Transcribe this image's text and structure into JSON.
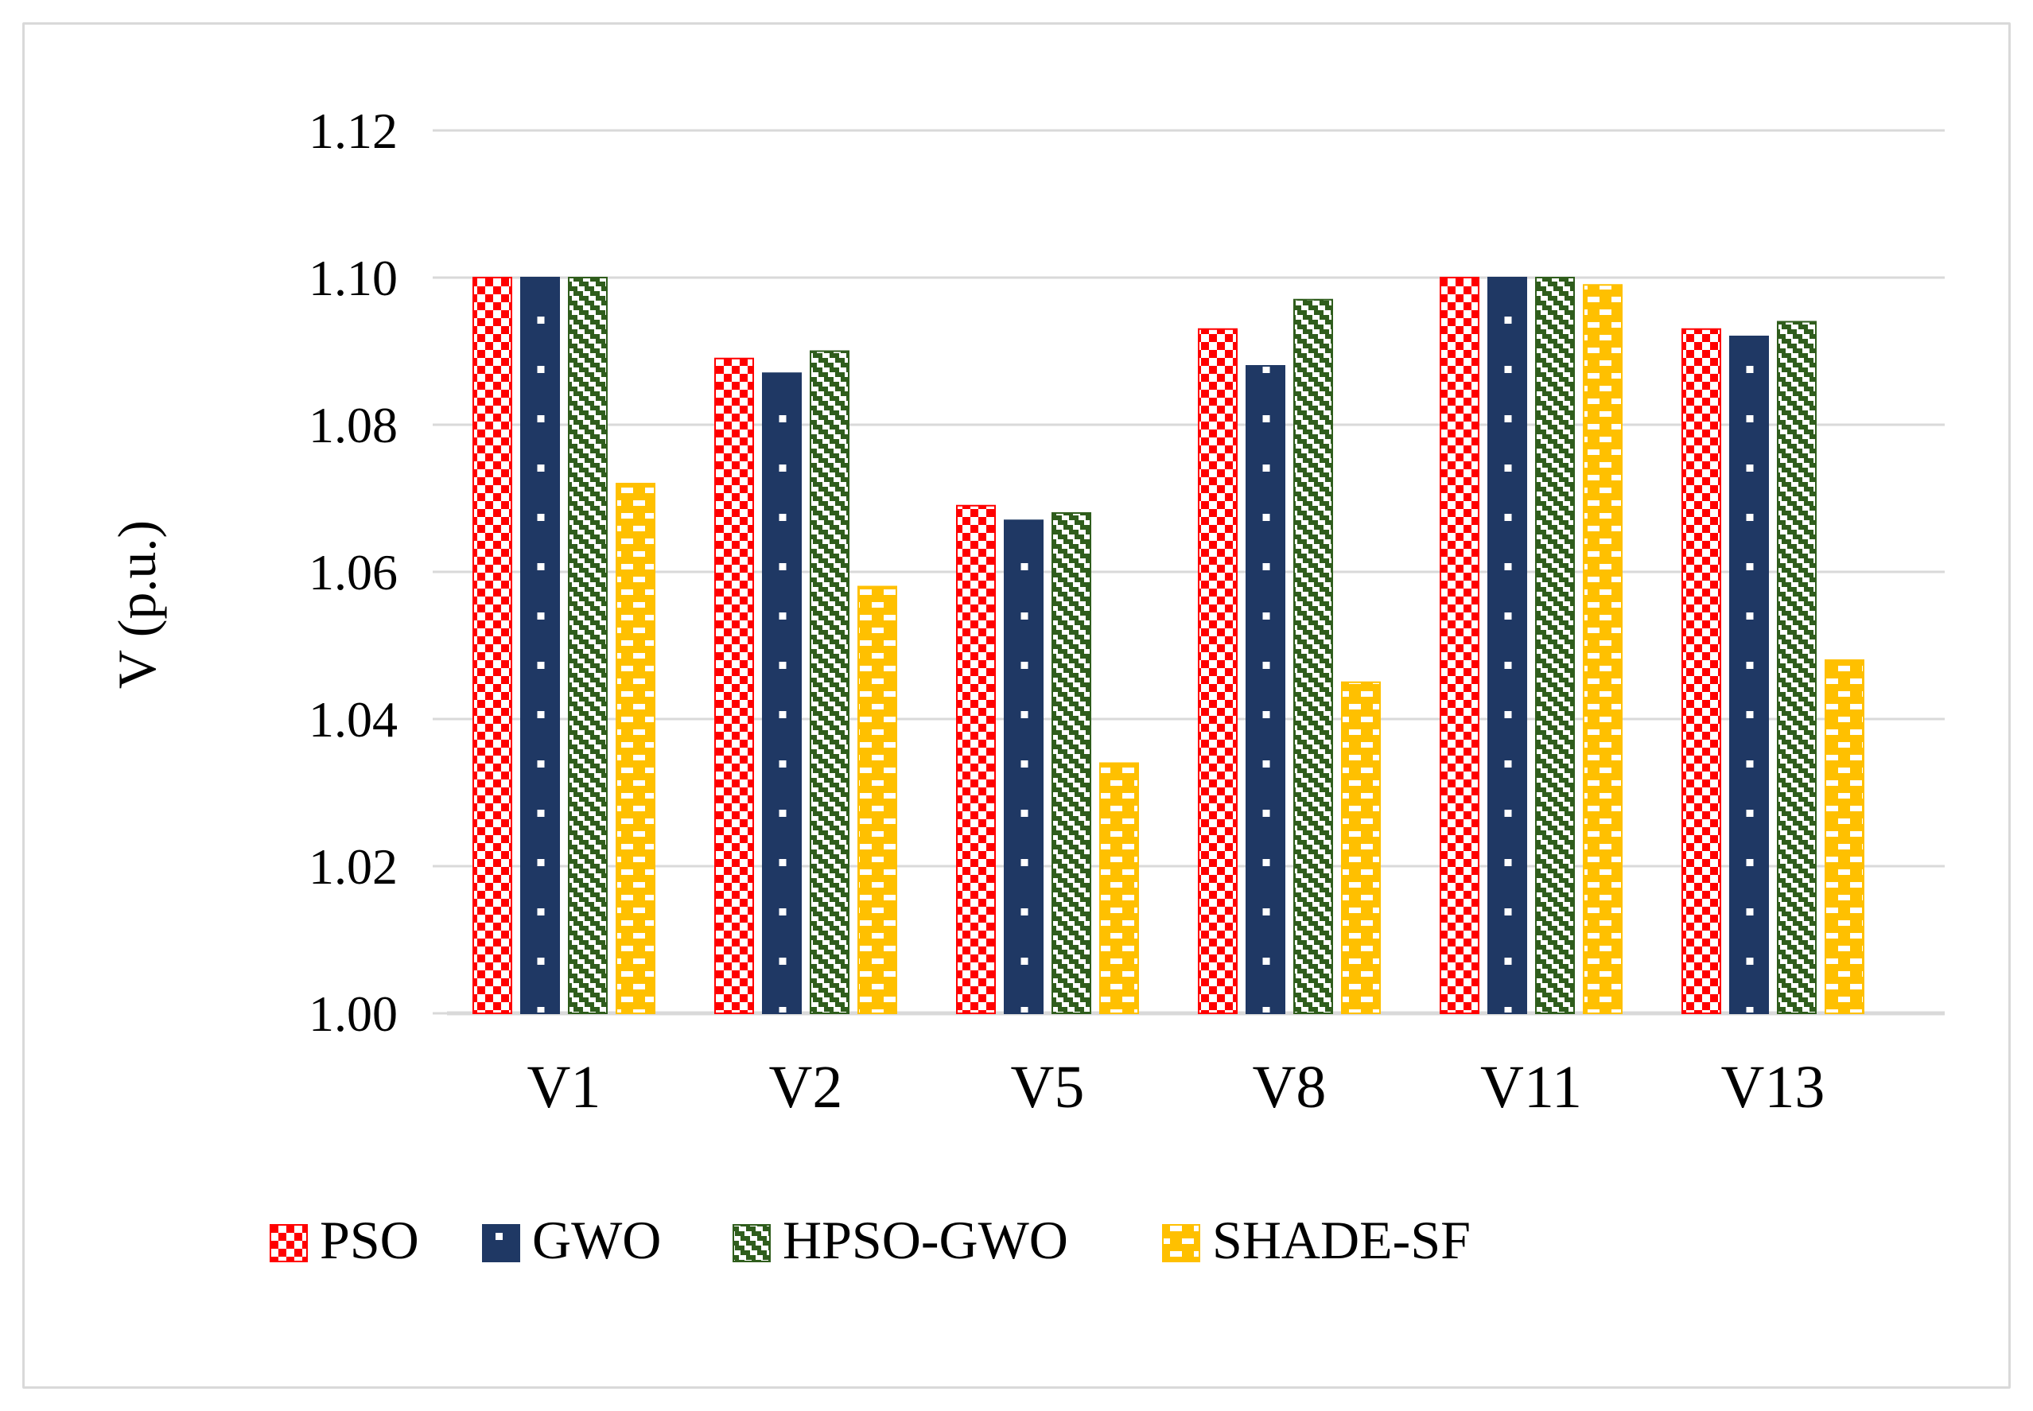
{
  "figure": {
    "border_color": "#d9d9d9",
    "background": "#ffffff",
    "text_color": "#000000"
  },
  "chart_data": {
    "type": "bar",
    "title": "",
    "xlabel": "",
    "ylabel": "V (p.u.)",
    "ylim": [
      1.0,
      1.12
    ],
    "ytick_step": 0.02,
    "yticks": [
      1.0,
      1.02,
      1.04,
      1.06,
      1.08,
      1.1,
      1.12
    ],
    "ytick_labels": [
      "1.00",
      "1.02",
      "1.04",
      "1.06",
      "1.08",
      "1.10",
      "1.12"
    ],
    "grid": true,
    "gridline_color": "#d9d9d9",
    "axis_line_color": "#cccccc",
    "categories": [
      "V1",
      "V2",
      "V5",
      "V8",
      "V11",
      "V13"
    ],
    "series": [
      {
        "name": "PSO",
        "color": "#ff0000",
        "pattern": "checkerboard",
        "values": [
          1.1,
          1.089,
          1.069,
          1.093,
          1.1,
          1.093
        ]
      },
      {
        "name": "GWO",
        "color": "#1f3864",
        "pattern": "sparse-dots",
        "values": [
          1.1,
          1.087,
          1.067,
          1.088,
          1.1,
          1.092
        ]
      },
      {
        "name": "HPSO-GWO",
        "color": "#2f5d1c",
        "pattern": "diagonal-dashes",
        "values": [
          1.1,
          1.09,
          1.068,
          1.097,
          1.1,
          1.094
        ]
      },
      {
        "name": "SHADE-SF",
        "color": "#ffc000",
        "pattern": "brick-dashes",
        "values": [
          1.072,
          1.058,
          1.034,
          1.045,
          1.099,
          1.048
        ]
      }
    ],
    "legend_position": "bottom"
  }
}
